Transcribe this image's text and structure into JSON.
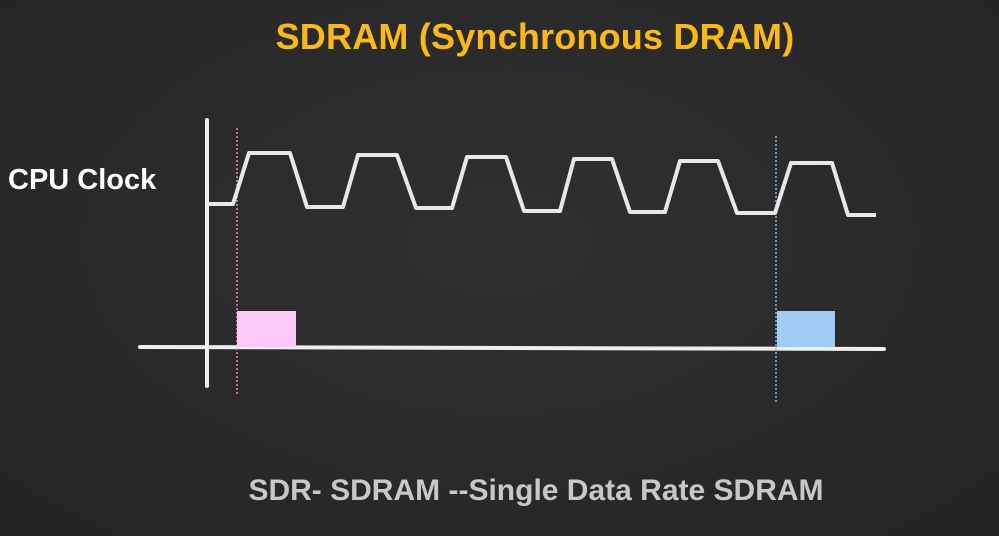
{
  "slide": {
    "title": "SDRAM (Synchronous DRAM)",
    "signal_label": "CPU Clock",
    "caption": "SDR- SDRAM --Single Data Rate SDRAM"
  },
  "colors": {
    "background": "#2a2a2a",
    "title": "#fbb917",
    "label": "#ffffff",
    "caption": "#c8c8c8",
    "waveform": "#e8e8e8",
    "axes": "#eeeeee",
    "first_transfer_block": "#fbc8f6",
    "second_transfer_block": "#9fcbf5",
    "first_marker_line": "#e28ad6",
    "second_marker_line": "#7fb3e8"
  },
  "diagram": {
    "clock_cycles": 6,
    "data_transfers": [
      {
        "cycle": 1,
        "color_key": "first_transfer_block"
      },
      {
        "cycle": 6,
        "color_key": "second_transfer_block"
      }
    ]
  }
}
